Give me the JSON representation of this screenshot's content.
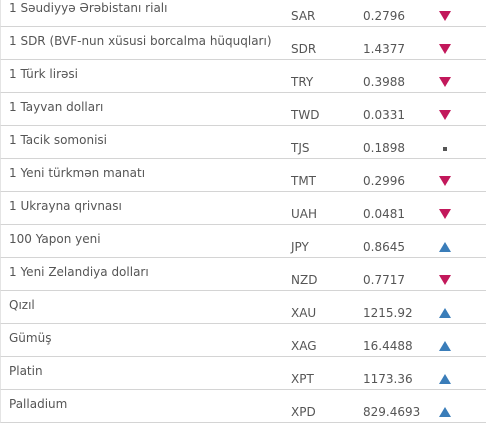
{
  "table": {
    "rows": [
      {
        "name": "1 Səudiyyə Ərəbistanı rialı",
        "code": "SAR",
        "rate": 0.2796
      },
      {
        "name": "1 SDR (BVF-nun xüsusi borcalma hüquqları)",
        "code": "SDR",
        "rate": 1.4377
      },
      {
        "name": "1 Türk lirəsi",
        "code": "TRY",
        "rate": 0.3988
      },
      {
        "name": "1 Tayvan dolları",
        "code": "TWD",
        "rate": 0.0331
      },
      {
        "name": "1 Tacik somonisi",
        "code": "TJS",
        "rate": 0.1898
      },
      {
        "name": "1 Yeni türkmən manatı",
        "code": "TMT",
        "rate": 0.2996
      },
      {
        "name": "1 Ukrayna qrivnası",
        "code": "UAH",
        "rate": 0.0481
      },
      {
        "name": "100 Yapon yeni",
        "code": "JPY",
        "rate": 0.8645
      },
      {
        "name": "1 Yeni Zelandiya dolları",
        "code": "NZD",
        "rate": 0.7717
      },
      {
        "name": "Qızıl",
        "code": "XAU",
        "rate": 1215.92
      },
      {
        "name": "Gümüş",
        "code": "XAG",
        "rate": 16.4488
      },
      {
        "name": "Platin",
        "code": "XPT",
        "rate": 1173.36
      },
      {
        "name": "Palladium",
        "code": "XPD",
        "rate": 829.4693
      }
    ]
  }
}
